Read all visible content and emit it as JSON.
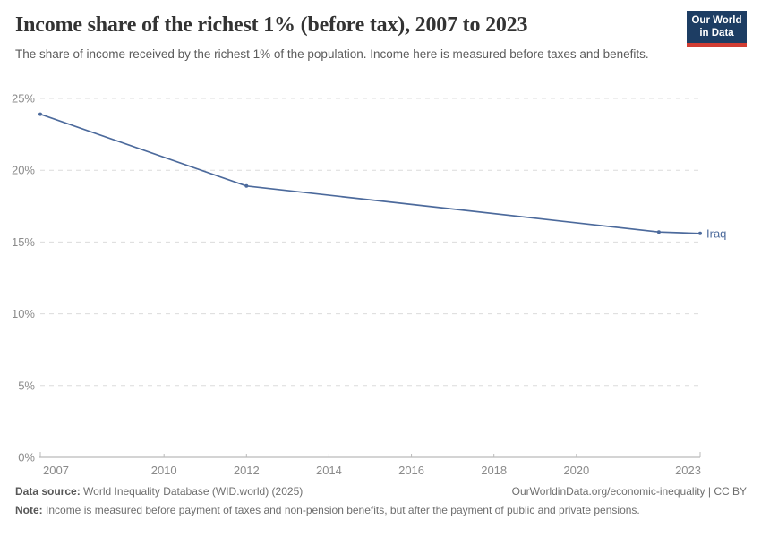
{
  "header": {
    "title": "Income share of the richest 1% (before tax), 2007 to 2023",
    "subtitle": "The share of income received by the richest 1% of the population. Income here is measured before taxes and benefits.",
    "logo": {
      "line1": "Our World",
      "line2": "in Data"
    }
  },
  "colors": {
    "series_blue": "#4c6a9c",
    "logo_navy": "#1d3d63",
    "logo_red": "#d13d33",
    "gridline": "#dcdcdc",
    "axis": "#a8a8a8",
    "tick_label": "#8b8b8b"
  },
  "chart_data": {
    "type": "line",
    "title": "Income share of the richest 1% (before tax), 2007 to 2023",
    "xlabel": "",
    "ylabel": "",
    "xlim": [
      2007,
      2023
    ],
    "ylim": [
      0,
      25
    ],
    "grid": "horizontal-dashed",
    "legend_position": "end-of-line-label",
    "series": [
      {
        "name": "Iraq",
        "color": "#4c6a9c",
        "points": [
          {
            "x": 2007,
            "y": 23.9
          },
          {
            "x": 2012,
            "y": 18.9
          },
          {
            "x": 2022,
            "y": 15.7
          },
          {
            "x": 2023,
            "y": 15.6
          }
        ]
      }
    ],
    "xticks": [
      {
        "value": 2007,
        "label": "2007"
      },
      {
        "value": 2010,
        "label": "2010"
      },
      {
        "value": 2012,
        "label": "2012"
      },
      {
        "value": 2014,
        "label": "2014"
      },
      {
        "value": 2016,
        "label": "2016"
      },
      {
        "value": 2018,
        "label": "2018"
      },
      {
        "value": 2020,
        "label": "2020"
      },
      {
        "value": 2023,
        "label": "2023"
      }
    ],
    "yticks": [
      {
        "value": 0,
        "label": "0%"
      },
      {
        "value": 5,
        "label": "5%"
      },
      {
        "value": 10,
        "label": "10%"
      },
      {
        "value": 15,
        "label": "15%"
      },
      {
        "value": 20,
        "label": "20%"
      },
      {
        "value": 25,
        "label": "25%"
      }
    ]
  },
  "footer": {
    "datasource_label": "Data source:",
    "datasource_text": " World Inequality Database (WID.world) (2025)",
    "attribution": "OurWorldinData.org/economic-inequality | CC BY",
    "note_label": "Note:",
    "note_text": " Income is measured before payment of taxes and non-pension benefits, but after the payment of public and private pensions."
  }
}
